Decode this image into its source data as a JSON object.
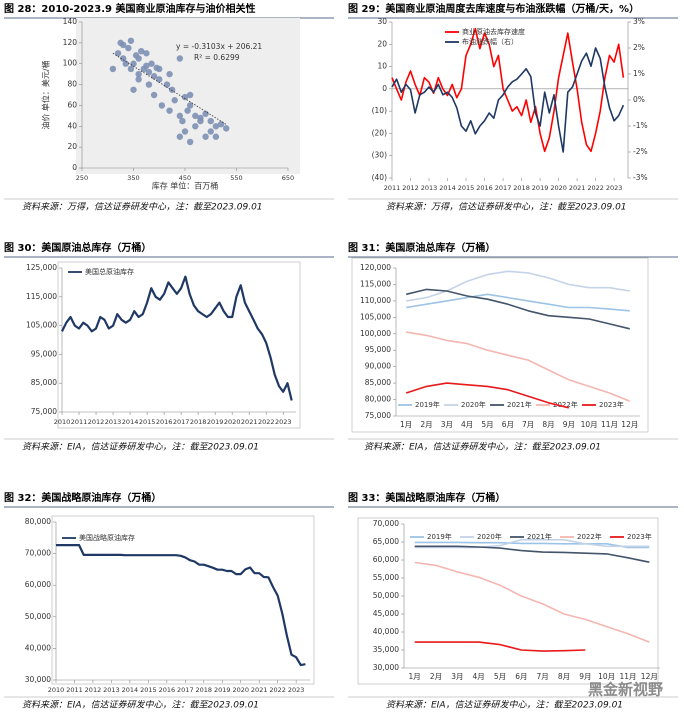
{
  "watermark": "黑金新视野",
  "chart_data": [
    {
      "type": "scatter",
      "figure_title": "图 28：2010-2023.9 美国商业原油库存与油价相关性",
      "source": "资料来源：万得，信达证券研发中心，注：截至2023.09.01",
      "x_label": "库存 单位：百万桶",
      "y_label": "油价 单位：美元/桶",
      "color": "#7d8fb3",
      "trendline": {
        "slope": -0.3103,
        "intercept": 206.21,
        "label": "y = -0.3103x + 206.21"
      },
      "annotation": "R² = 0.6299",
      "x": [
        320,
        325,
        330,
        335,
        340,
        345,
        350,
        355,
        360,
        365,
        370,
        375,
        380,
        385,
        390,
        395,
        400,
        310,
        330,
        345,
        360,
        375,
        390,
        405,
        415,
        420,
        425,
        430,
        440,
        445,
        450,
        455,
        460,
        470,
        480,
        490,
        500,
        510,
        520,
        530,
        440,
        450,
        460,
        470,
        480,
        490,
        500,
        510,
        420,
        400,
        380,
        360,
        350,
        440,
        460
      ],
      "values": [
        110,
        120,
        105,
        100,
        115,
        95,
        100,
        108,
        90,
        112,
        95,
        98,
        92,
        100,
        88,
        96,
        85,
        95,
        118,
        122,
        105,
        110,
        70,
        60,
        80,
        55,
        75,
        65,
        50,
        45,
        68,
        55,
        60,
        50,
        48,
        52,
        45,
        40,
        42,
        38,
        30,
        35,
        25,
        40,
        45,
        30,
        35,
        30,
        90,
        95,
        80,
        85,
        75,
        105,
        70
      ],
      "xlim": [
        250,
        650
      ],
      "xticks": [
        250,
        350,
        450,
        550,
        650
      ],
      "ylim": [
        0,
        140
      ],
      "yticks": [
        0,
        20,
        40,
        60,
        80,
        100,
        120,
        140
      ]
    },
    {
      "type": "line",
      "figure_title": "图 29：美国商业原油周度去库速度与布油涨跌幅（万桶/天，%）",
      "source": "资料来源：万得，信达证券研发中心，注：截至2023.09.01",
      "x": [
        2011,
        2011.25,
        2011.5,
        2011.75,
        2012,
        2012.25,
        2012.5,
        2012.75,
        2013,
        2013.25,
        2013.5,
        2013.75,
        2014,
        2014.25,
        2014.5,
        2014.75,
        2015,
        2015.25,
        2015.5,
        2015.75,
        2016,
        2016.25,
        2016.5,
        2016.75,
        2017,
        2017.25,
        2017.5,
        2017.75,
        2018,
        2018.25,
        2018.5,
        2018.75,
        2019,
        2019.25,
        2019.5,
        2019.75,
        2020,
        2020.25,
        2020.5,
        2020.75,
        2021,
        2021.25,
        2021.5,
        2021.75,
        2022,
        2022.25,
        2022.5,
        2022.75,
        2023,
        2023.25,
        2023.5
      ],
      "xlim": [
        2011,
        2023.75
      ],
      "xticks": [
        2011,
        2012,
        2013,
        2014,
        2015,
        2016,
        2017,
        2018,
        2019,
        2020,
        2021,
        2022,
        2023
      ],
      "ylim": [
        -40,
        30
      ],
      "yticks": [
        {
          "value": -40,
          "label": "(40)"
        },
        {
          "value": -30,
          "label": "(30)"
        },
        {
          "value": -20,
          "label": "(20)"
        },
        {
          "value": -10,
          "label": "(10)"
        },
        0,
        10,
        20,
        30
      ],
      "y2lim": [
        -3,
        3
      ],
      "y2ticks": [
        {
          "value": -3,
          "label": "-3%"
        },
        {
          "value": -2,
          "label": "-2%"
        },
        {
          "value": -1,
          "label": "-1%"
        },
        {
          "value": 0,
          "label": "0%"
        },
        {
          "value": 1,
          "label": "1%"
        },
        {
          "value": 2,
          "label": "2%"
        },
        {
          "value": 3,
          "label": "3%"
        }
      ],
      "series": [
        {
          "name": "商业原油去库存速度",
          "color": "#ff0000",
          "values": [
            5,
            0,
            -5,
            3,
            8,
            2,
            -3,
            5,
            3,
            -2,
            5,
            0,
            -3,
            2,
            -4,
            0,
            15,
            20,
            27,
            18,
            25,
            20,
            10,
            15,
            0,
            -5,
            -10,
            -8,
            -12,
            -5,
            -15,
            -8,
            -20,
            -28,
            -22,
            -10,
            5,
            15,
            25,
            12,
            0,
            -15,
            -25,
            -28,
            -20,
            -10,
            5,
            15,
            12,
            20,
            5
          ]
        },
        {
          "name": "布油涨跌幅（右）",
          "color": "#1f3864",
          "axis": "y2",
          "values": [
            0.5,
            0.8,
            0.3,
            0.6,
            0.4,
            -0.5,
            0.2,
            0.3,
            0.5,
            0.3,
            0.6,
            0.2,
            0.3,
            0.1,
            -0.3,
            -1.0,
            -1.2,
            -0.8,
            -1.3,
            -1.0,
            -0.8,
            -0.5,
            -0.7,
            0.0,
            0.2,
            0.5,
            0.7,
            0.8,
            1.0,
            1.2,
            0.9,
            -0.5,
            -1.0,
            0.3,
            -0.5,
            0.2,
            -1.0,
            -2.0,
            0.3,
            0.5,
            1.0,
            1.5,
            1.8,
            1.3,
            2.0,
            1.6,
            0.5,
            -0.3,
            -0.8,
            -0.6,
            -0.2
          ]
        }
      ]
    },
    {
      "type": "line",
      "figure_title": "图 30：美国原油总库存（万桶）",
      "source": "资料来源：EIA，信达证券研发中心，注：截至2023.09.01",
      "x": [
        2010,
        2010.25,
        2010.5,
        2010.75,
        2011,
        2011.25,
        2011.5,
        2011.75,
        2012,
        2012.25,
        2012.5,
        2012.75,
        2013,
        2013.25,
        2013.5,
        2013.75,
        2014,
        2014.25,
        2014.5,
        2014.75,
        2015,
        2015.25,
        2015.5,
        2015.75,
        2016,
        2016.25,
        2016.5,
        2016.75,
        2017,
        2017.25,
        2017.5,
        2017.75,
        2018,
        2018.25,
        2018.5,
        2018.75,
        2019,
        2019.25,
        2019.5,
        2019.75,
        2020,
        2020.25,
        2020.5,
        2020.75,
        2021,
        2021.25,
        2021.5,
        2021.75,
        2022,
        2022.25,
        2022.5,
        2022.75,
        2023,
        2023.25,
        2023.5
      ],
      "xlim": [
        2010,
        2023.75
      ],
      "xticks": [
        2010,
        2011,
        2012,
        2013,
        2014,
        2015,
        2016,
        2017,
        2018,
        2019,
        2020,
        2021,
        2022,
        2023
      ],
      "ylim": [
        75000,
        125000
      ],
      "yticks": [
        {
          "value": 75000,
          "label": "75,000"
        },
        {
          "value": 85000,
          "label": "85,000"
        },
        {
          "value": 95000,
          "label": "95,000"
        },
        {
          "value": 105000,
          "label": "105,000"
        },
        {
          "value": 115000,
          "label": "115,000"
        },
        {
          "value": 125000,
          "label": "125,000"
        }
      ],
      "series": [
        {
          "name": "美国总原油库存",
          "color": "#1f3864",
          "values": [
            103000,
            106000,
            108000,
            105000,
            104000,
            106000,
            105000,
            103000,
            104000,
            108000,
            107000,
            104000,
            105000,
            109000,
            107000,
            106000,
            107000,
            110000,
            108000,
            109000,
            113000,
            118000,
            115000,
            114000,
            116000,
            120000,
            118000,
            116000,
            118000,
            122000,
            116000,
            112000,
            110000,
            109000,
            108000,
            109000,
            111000,
            113000,
            110000,
            108000,
            108000,
            115000,
            119000,
            113000,
            110000,
            107000,
            104000,
            102000,
            99000,
            94000,
            88000,
            84000,
            82000,
            85000,
            79000
          ]
        }
      ]
    },
    {
      "type": "line",
      "figure_title": "图 31：美国原油总库存（万桶）",
      "source": "资料来源：EIA，信达证券研发中心，注：截至2023.09.01",
      "categories": [
        "1月",
        "2月",
        "3月",
        "4月",
        "5月",
        "6月",
        "7月",
        "8月",
        "9月",
        "10月",
        "11月",
        "12月"
      ],
      "ylim": [
        75000,
        120000
      ],
      "yticks": [
        {
          "value": 75000,
          "label": "75,000"
        },
        {
          "value": 80000,
          "label": "80,000"
        },
        {
          "value": 85000,
          "label": "85,000"
        },
        {
          "value": 90000,
          "label": "90,000"
        },
        {
          "value": 95000,
          "label": "95,000"
        },
        {
          "value": 100000,
          "label": "100,000"
        },
        {
          "value": 105000,
          "label": "105,000"
        },
        {
          "value": 110000,
          "label": "110,000"
        },
        {
          "value": 115000,
          "label": "115,000"
        },
        {
          "value": 120000,
          "label": "120,000"
        }
      ],
      "series": [
        {
          "name": "2019年",
          "color": "#9dc3e6",
          "values": [
            108000,
            109000,
            110000,
            111000,
            112000,
            111000,
            110000,
            109000,
            108000,
            108000,
            107500,
            107000
          ]
        },
        {
          "name": "2020年",
          "color": "#c5d3e8",
          "values": [
            110000,
            111000,
            113000,
            116000,
            118000,
            119000,
            118500,
            117000,
            115000,
            114000,
            114000,
            113000
          ]
        },
        {
          "name": "2021年",
          "color": "#44546a",
          "values": [
            112000,
            113500,
            113000,
            111500,
            110500,
            109000,
            107000,
            105500,
            105000,
            104500,
            103000,
            101500
          ]
        },
        {
          "name": "2022年",
          "color": "#f4b6b0",
          "values": [
            100500,
            99500,
            98000,
            97000,
            95000,
            93500,
            92000,
            89000,
            86000,
            84000,
            82000,
            79500
          ]
        },
        {
          "name": "2023年",
          "color": "#e8191b",
          "values": [
            82000,
            84000,
            85000,
            84500,
            84000,
            83000,
            81000,
            79000,
            77500,
            null,
            null,
            null
          ]
        }
      ]
    },
    {
      "type": "line",
      "figure_title": "图 32：美国战略原油库存（万桶）",
      "source": "资料来源：EIA，信达证券研发中心，注：截至2023.09.01",
      "x": [
        2010,
        2010.25,
        2010.5,
        2010.75,
        2011,
        2011.25,
        2011.5,
        2011.75,
        2012,
        2012.25,
        2012.5,
        2012.75,
        2013,
        2013.25,
        2013.5,
        2013.75,
        2014,
        2014.25,
        2014.5,
        2014.75,
        2015,
        2015.25,
        2015.5,
        2015.75,
        2016,
        2016.25,
        2016.5,
        2016.75,
        2017,
        2017.25,
        2017.5,
        2017.75,
        2018,
        2018.25,
        2018.5,
        2018.75,
        2019,
        2019.25,
        2019.5,
        2019.75,
        2020,
        2020.25,
        2020.5,
        2020.75,
        2021,
        2021.25,
        2021.5,
        2021.75,
        2022,
        2022.25,
        2022.5,
        2022.75,
        2023,
        2023.25,
        2023.5
      ],
      "xlim": [
        2010,
        2023.75
      ],
      "xticks": [
        2010,
        2011,
        2012,
        2013,
        2014,
        2015,
        2016,
        2017,
        2018,
        2019,
        2020,
        2021,
        2022,
        2023
      ],
      "ylim": [
        30000,
        80000
      ],
      "yticks": [
        {
          "value": 30000,
          "label": "30,000"
        },
        {
          "value": 40000,
          "label": "40,000"
        },
        {
          "value": 50000,
          "label": "50,000"
        },
        {
          "value": 60000,
          "label": "60,000"
        },
        {
          "value": 70000,
          "label": "70,000"
        },
        {
          "value": 80000,
          "label": "80,000"
        }
      ],
      "series": [
        {
          "name": "美国战略原油库存",
          "color": "#1f3864",
          "values": [
            72700,
            72700,
            72700,
            72700,
            72700,
            72700,
            69600,
            69600,
            69600,
            69600,
            69600,
            69600,
            69600,
            69600,
            69600,
            69500,
            69500,
            69500,
            69500,
            69500,
            69500,
            69500,
            69500,
            69500,
            69500,
            69500,
            69500,
            69300,
            68800,
            67900,
            67500,
            66500,
            66500,
            66000,
            65500,
            64900,
            64900,
            64500,
            64500,
            63500,
            63500,
            65000,
            65600,
            63800,
            63800,
            62600,
            62500,
            59400,
            56700,
            51000,
            44000,
            38000,
            37200,
            34700,
            35000
          ]
        }
      ]
    },
    {
      "type": "line",
      "figure_title": "图 33：美国战略原油库存（万桶）",
      "source": "资料来源：EIA，信达证券研发中心，注：截至2023.09.01",
      "categories": [
        "1月",
        "2月",
        "3月",
        "4月",
        "5月",
        "6月",
        "7月",
        "8月",
        "9月",
        "10月",
        "11月",
        "12月"
      ],
      "ylim": [
        30000,
        70000
      ],
      "yticks": [
        {
          "value": 30000,
          "label": "30,000"
        },
        {
          "value": 35000,
          "label": "35,000"
        },
        {
          "value": 40000,
          "label": "40,000"
        },
        {
          "value": 45000,
          "label": "45,000"
        },
        {
          "value": 50000,
          "label": "50,000"
        },
        {
          "value": 55000,
          "label": "55,000"
        },
        {
          "value": 60000,
          "label": "60,000"
        },
        {
          "value": 65000,
          "label": "65,000"
        },
        {
          "value": 70000,
          "label": "70,000"
        }
      ],
      "series": [
        {
          "name": "2019年",
          "color": "#9dc3e6",
          "values": [
            64900,
            64900,
            64900,
            64800,
            64800,
            64600,
            64600,
            64500,
            64500,
            64500,
            63500,
            63500
          ]
        },
        {
          "name": "2020年",
          "color": "#c5d3e8",
          "values": [
            63500,
            63500,
            63500,
            63500,
            64000,
            65600,
            65600,
            65600,
            64500,
            63800,
            63800,
            63800
          ]
        },
        {
          "name": "2021年",
          "color": "#44546a",
          "values": [
            63800,
            63800,
            63800,
            63600,
            63300,
            62600,
            62200,
            62100,
            61900,
            61700,
            60600,
            59400
          ]
        },
        {
          "name": "2022年",
          "color": "#f4b6b0",
          "values": [
            59300,
            58500,
            56700,
            55200,
            53000,
            50000,
            47800,
            45000,
            43500,
            41500,
            39500,
            37200
          ]
        },
        {
          "name": "2023年",
          "color": "#e8191b",
          "values": [
            37200,
            37200,
            37200,
            37200,
            36500,
            35000,
            34700,
            34800,
            35000,
            null,
            null,
            null
          ]
        }
      ]
    }
  ]
}
